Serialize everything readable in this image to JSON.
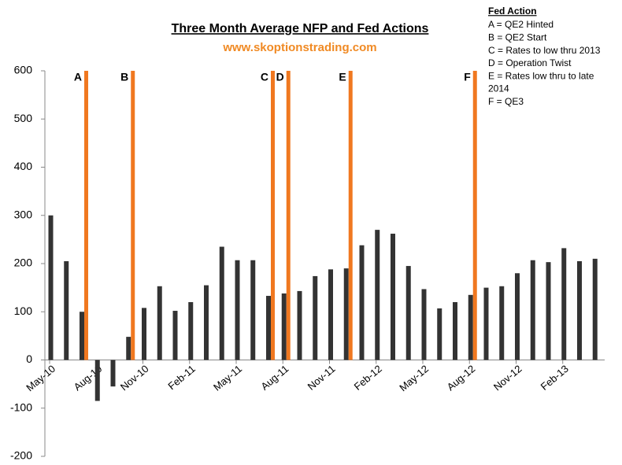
{
  "chart_data": {
    "type": "bar",
    "title": "Three Month Average NFP and Fed Actions",
    "subtitle": "www.skoptionstrading.com",
    "legend_title": "Fed Action",
    "legend_lines": [
      "A = QE2 Hinted",
      "B = QE2 Start",
      "C = Rates to low thru 2013",
      "D = Operation Twist",
      "E = Rates low thru to late",
      "2014",
      "F  = QE3"
    ],
    "categories": [
      "May-10",
      null,
      null,
      "Aug-10",
      null,
      null,
      "Nov-10",
      null,
      null,
      "Feb-11",
      null,
      null,
      "May-11",
      null,
      null,
      "Aug-11",
      null,
      null,
      "Nov-11",
      null,
      null,
      "Feb-12",
      null,
      null,
      "May-12",
      null,
      null,
      "Aug-12",
      null,
      null,
      "Nov-12",
      null,
      null,
      "Feb-13",
      null,
      null
    ],
    "series": [
      {
        "color": "#333333",
        "values": [
          300,
          205,
          100,
          -85,
          -55,
          48,
          108,
          153,
          102,
          120,
          155,
          235,
          207,
          207,
          133,
          138,
          143,
          174,
          188,
          190,
          238,
          270,
          262,
          195,
          147,
          107,
          120,
          135,
          150,
          153,
          180,
          207,
          203,
          232,
          205,
          210
        ]
      },
      {
        "color": "#f07820",
        "values": [
          null,
          null,
          600,
          null,
          null,
          600,
          null,
          null,
          null,
          null,
          null,
          null,
          null,
          null,
          600,
          600,
          null,
          null,
          null,
          600,
          null,
          null,
          null,
          null,
          null,
          null,
          null,
          600,
          null,
          null,
          null,
          null,
          null,
          null,
          null,
          null
        ],
        "point_labels": [
          null,
          null,
          "A",
          null,
          null,
          "B",
          null,
          null,
          null,
          null,
          null,
          null,
          null,
          null,
          "C",
          "D",
          null,
          null,
          null,
          "E",
          null,
          null,
          null,
          null,
          null,
          null,
          null,
          "F",
          null,
          null,
          null,
          null,
          null,
          null,
          null,
          null
        ]
      }
    ],
    "ylim": [
      -200,
      600
    ],
    "yticks": [
      -200,
      -100,
      0,
      100,
      200,
      300,
      400,
      500,
      600
    ],
    "grid": false
  }
}
